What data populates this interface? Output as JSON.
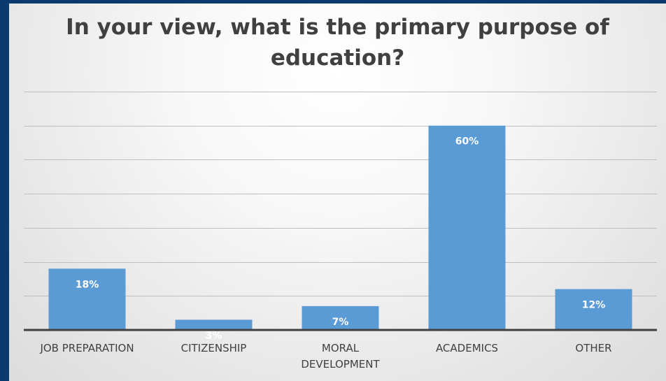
{
  "chart_data": {
    "type": "bar",
    "title": "In your view, what is the primary purpose of education?",
    "categories": [
      "JOB PREPARATION",
      "CITIZENSHIP",
      "MORAL DEVELOPMENT",
      "ACADEMICS",
      "OTHER"
    ],
    "category_lines": [
      [
        "JOB PREPARATION"
      ],
      [
        "CITIZENSHIP"
      ],
      [
        "MORAL",
        "DEVELOPMENT"
      ],
      [
        "ACADEMICS"
      ],
      [
        "OTHER"
      ]
    ],
    "values": [
      18,
      3,
      7,
      60,
      12
    ],
    "data_labels": [
      "18%",
      "3%",
      "7%",
      "60%",
      "12%"
    ],
    "ylim": [
      0,
      70
    ],
    "ytick_step": 10,
    "grid": true,
    "legend": "none",
    "xlabel": "",
    "ylabel": "",
    "colors": {
      "bar": "#5b9bd5",
      "frame": "#0b3a6e",
      "text": "#404040"
    }
  }
}
